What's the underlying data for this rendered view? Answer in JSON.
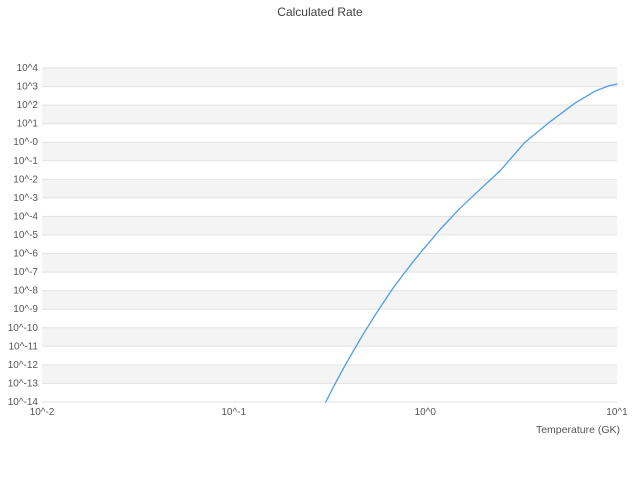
{
  "chart_data": {
    "type": "line",
    "title": "Calculated Rate",
    "xlabel": "Temperature (GK)",
    "ylabel": "",
    "x_scale": "log",
    "y_scale": "log",
    "x_range": [
      0.01,
      10
    ],
    "y_range": [
      1e-14,
      10000.0
    ],
    "grid": "horizontal",
    "legend": "none",
    "band_fill": "#f4f4f4",
    "grid_color": "#e2e2e2",
    "line_color": "#4f9de8",
    "x_tick_labels": [
      "10^-2",
      "10^-1",
      "10^0",
      "10^1"
    ],
    "x_tick_exponents": [
      -2,
      -1,
      0,
      1
    ],
    "y_tick_labels": [
      "10^4",
      "10^3",
      "10^2",
      "10^1",
      "10^-0",
      "10^-1",
      "10^-2",
      "10^-3",
      "10^-4",
      "10^-5",
      "10^-6",
      "10^-7",
      "10^-8",
      "10^-9",
      "10^-10",
      "10^-11",
      "10^-12",
      "10^-13",
      "10^-14"
    ],
    "y_tick_exponents": [
      4,
      3,
      2,
      1,
      0,
      -1,
      -2,
      -3,
      -4,
      -5,
      -6,
      -7,
      -8,
      -9,
      -10,
      -11,
      -12,
      -13,
      -14
    ],
    "series": [
      {
        "name": "Calculated Rate",
        "x": [
          0.302,
          0.339,
          0.38,
          0.427,
          0.479,
          0.537,
          0.603,
          0.676,
          0.759,
          0.851,
          0.955,
          1.2,
          1.51,
          1.91,
          2.45,
          3.31,
          4.47,
          6.03,
          7.67,
          9.12,
          10.0
        ],
        "y": [
          1e-14,
          1e-13,
          8.9e-13,
          7.2e-12,
          5.4e-11,
          3.6e-10,
          2.2e-09,
          1.3e-08,
          6.5e-08,
          3e-07,
          1.3e-06,
          2.1e-05,
          0.00026,
          0.0026,
          0.028,
          1.0,
          12.6,
          126,
          560,
          1120,
          1350
        ]
      }
    ]
  }
}
